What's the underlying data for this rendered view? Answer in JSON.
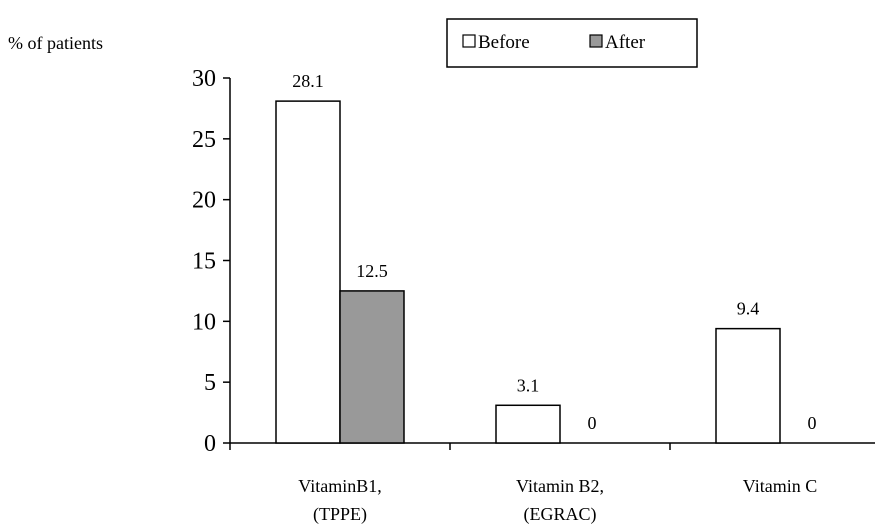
{
  "chart_data": {
    "type": "bar",
    "title": "",
    "ylabel": "% of patients",
    "xlabel": "",
    "ylim": [
      0,
      30
    ],
    "yticks": [
      0,
      5,
      10,
      15,
      20,
      25,
      30
    ],
    "categories": [
      [
        "VitaminB1,",
        "(TPPE)"
      ],
      [
        "Vitamin B2,",
        "(EGRAC)"
      ],
      [
        "Vitamin C"
      ]
    ],
    "series": [
      {
        "name": "Before",
        "values": [
          28.1,
          3.1,
          9.4
        ],
        "labels": [
          "28.1",
          "3.1",
          "9.4"
        ],
        "color": "#ffffff"
      },
      {
        "name": "After",
        "values": [
          12.5,
          0,
          0
        ],
        "labels": [
          "12.5",
          "0",
          "0"
        ],
        "color": "#999999"
      }
    ],
    "legend": {
      "position": "top-center"
    },
    "grid": false
  }
}
